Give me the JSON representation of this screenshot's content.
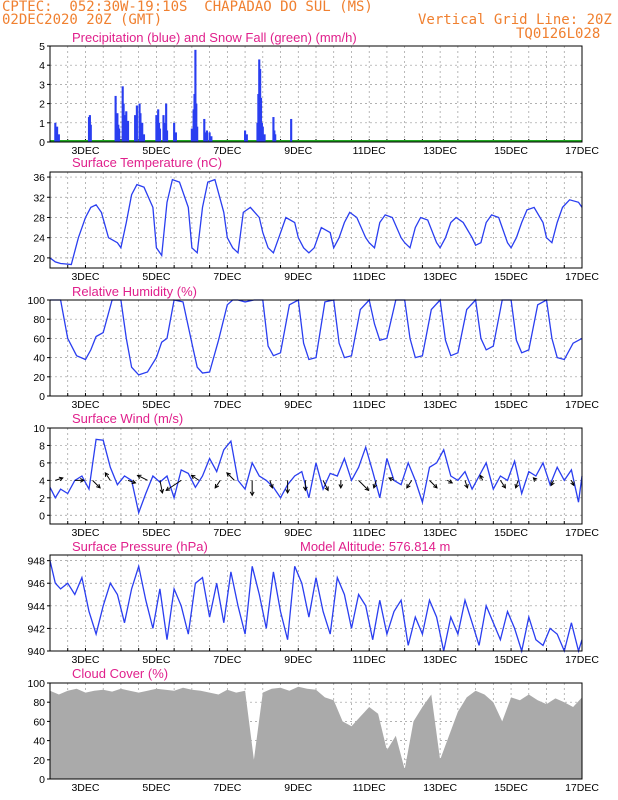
{
  "header": {
    "line1": "CPTEC:  052:30W-19:10S  CHAPADAO DO SUL (MS)",
    "line2": "02DEC2020 20Z (GMT)",
    "grid_note": "Vertical Grid Line: 20Z",
    "run_id": "TQ0126L028",
    "colors": {
      "header": "#f08030",
      "title": "#e0208c",
      "line": "#2a3ef0",
      "bar": "#2a3ef0",
      "snow": "#22aa22",
      "cloud": "#aaaaaa"
    }
  },
  "x_labels": [
    "3DEC",
    "5DEC",
    "7DEC",
    "9DEC",
    "11DEC",
    "13DEC",
    "15DEC",
    "17DEC"
  ],
  "extra_labels": {
    "altitude": "Model Altitude: 576.814 m"
  },
  "chart_data": [
    {
      "type": "bar",
      "title": "Precipitation (blue) and Snow Fall (green) (mm/h)",
      "ylim": [
        0,
        5
      ],
      "yticks": [
        "0",
        "1",
        "2",
        "3",
        "4",
        "5"
      ],
      "x": [
        0.3,
        0.4,
        0.5,
        2.2,
        2.25,
        2.3,
        3.7,
        3.8,
        3.85,
        3.9,
        4.1,
        4.15,
        4.2,
        4.3,
        4.35,
        4.4,
        4.8,
        4.85,
        4.9,
        5.05,
        5.1,
        5.2,
        5.3,
        6.0,
        6.1,
        6.15,
        6.2,
        6.4,
        6.5,
        6.55,
        6.6,
        7.0,
        7.1,
        8.0,
        8.05,
        8.1,
        8.15,
        8.2,
        8.25,
        8.3,
        8.7,
        8.75,
        8.8,
        8.85,
        9.0,
        9.1,
        11.0,
        11.05,
        11.1,
        11.7,
        11.75,
        11.8,
        11.85,
        11.9,
        11.95,
        12.0,
        12.1,
        12.6,
        12.65,
        12.7,
        13.6
      ],
      "values": [
        1.0,
        0.8,
        0.4,
        1.3,
        1.4,
        0.9,
        2.4,
        1.5,
        0.9,
        0.7,
        2.9,
        2.0,
        1.4,
        1.6,
        0.6,
        1.1,
        1.4,
        1.0,
        1.9,
        2.0,
        1.5,
        1.0,
        0.4,
        1.4,
        1.7,
        1.0,
        0.7,
        1.4,
        1.0,
        2.0,
        0.6,
        1.0,
        0.5,
        0.7,
        0.6,
        1.7,
        2.5,
        4.8,
        2.0,
        0.8,
        1.2,
        0.5,
        0.3,
        0.6,
        0.5,
        0.3,
        0.6,
        0.3,
        0.4,
        1.0,
        2.5,
        4.3,
        3.8,
        2.3,
        1.0,
        0.8,
        0.4,
        1.3,
        0.6,
        0.4,
        1.2
      ],
      "snow": 0
    },
    {
      "type": "line",
      "title": "Surface Temperature (nC)",
      "ylim": [
        18,
        37
      ],
      "yticks": [
        "20",
        "24",
        "28",
        "32",
        "36"
      ],
      "x": [
        0,
        0.3,
        0.6,
        0.9,
        1.2,
        1.6,
        2.0,
        2.3,
        2.6,
        2.9,
        3.3,
        3.8,
        4.0,
        4.3,
        4.6,
        4.9,
        5.3,
        5.8,
        6.0,
        6.3,
        6.6,
        6.9,
        7.3,
        7.8,
        8.0,
        8.3,
        8.6,
        8.9,
        9.3,
        9.8,
        10.0,
        10.3,
        10.6,
        10.9,
        11.3,
        11.8,
        12.0,
        12.3,
        12.6,
        12.9,
        13.3,
        13.8,
        14.0,
        14.3,
        14.6,
        14.9,
        15.3,
        15.8,
        16.0,
        16.3,
        16.6,
        16.9,
        17.3,
        17.8,
        18.0,
        18.3,
        18.6,
        18.9,
        19.3,
        19.8,
        20.0,
        20.3,
        20.6,
        20.9,
        21.3,
        21.8,
        22.0,
        22.3,
        22.6,
        22.9,
        23.3,
        23.8,
        24.0,
        24.3,
        24.6,
        24.9,
        25.3,
        25.8,
        26.0,
        26.3,
        26.6,
        26.9,
        27.3,
        27.8,
        28.0,
        28.3,
        28.6,
        28.9,
        29.3,
        29.8,
        30.0
      ],
      "values": [
        20.0,
        19.2,
        18.9,
        18.8,
        18.7,
        24.0,
        28.0,
        30.0,
        30.5,
        29.0,
        24.0,
        23.0,
        22.0,
        27.0,
        32.5,
        34.5,
        34.0,
        30.0,
        22.0,
        20.5,
        31.0,
        35.5,
        35.0,
        30.0,
        22.0,
        21.0,
        30.0,
        35.0,
        35.5,
        29.0,
        24.0,
        22.0,
        21.0,
        29.0,
        30.0,
        28.0,
        25.0,
        22.0,
        21.0,
        24.0,
        28.0,
        27.0,
        24.0,
        22.0,
        21.0,
        22.0,
        26.0,
        25.0,
        22.0,
        24.0,
        27.0,
        29.0,
        28.0,
        24.0,
        23.0,
        22.0,
        27.0,
        28.5,
        28.0,
        24.0,
        23.0,
        22.0,
        26.0,
        28.0,
        27.5,
        23.0,
        22.0,
        24.0,
        27.0,
        28.0,
        27.0,
        24.0,
        22.5,
        23.0,
        27.0,
        28.5,
        28.0,
        23.0,
        22.0,
        24.0,
        27.0,
        29.5,
        30.0,
        27.0,
        24.0,
        23.0,
        27.0,
        30.0,
        31.5,
        31.0,
        30.0
      ]
    },
    {
      "type": "line",
      "title": "Relative Humidity (%)",
      "ylim": [
        0,
        100
      ],
      "yticks": [
        "0",
        "20",
        "40",
        "60",
        "80",
        "100"
      ],
      "x": [
        0,
        0.3,
        0.6,
        1.0,
        1.5,
        2.0,
        2.3,
        2.6,
        3.0,
        3.5,
        4.0,
        4.3,
        4.6,
        5.0,
        5.5,
        6.0,
        6.3,
        6.6,
        7.0,
        7.5,
        8.0,
        8.3,
        8.6,
        9.0,
        9.5,
        10.0,
        10.3,
        10.6,
        11.0,
        11.5,
        12.0,
        12.3,
        12.6,
        13.0,
        13.5,
        14.0,
        14.3,
        14.6,
        15.0,
        15.5,
        16.0,
        16.3,
        16.6,
        17.0,
        17.5,
        18.0,
        18.3,
        18.6,
        19.0,
        19.5,
        20.0,
        20.3,
        20.6,
        21.0,
        21.5,
        22.0,
        22.3,
        22.6,
        23.0,
        23.5,
        24.0,
        24.3,
        24.6,
        25.0,
        25.5,
        26.0,
        26.3,
        26.6,
        27.0,
        27.5,
        28.0,
        28.3,
        28.6,
        29.0,
        29.5,
        30.0
      ],
      "values": [
        100,
        100,
        100,
        60,
        42,
        38,
        48,
        62,
        66,
        100,
        100,
        60,
        30,
        22,
        25,
        40,
        56,
        60,
        100,
        98,
        55,
        30,
        24,
        25,
        58,
        95,
        100,
        100,
        98,
        100,
        100,
        52,
        42,
        45,
        95,
        100,
        55,
        38,
        40,
        98,
        100,
        55,
        40,
        42,
        90,
        100,
        75,
        58,
        60,
        100,
        100,
        60,
        40,
        42,
        90,
        100,
        58,
        42,
        45,
        90,
        100,
        60,
        48,
        52,
        100,
        100,
        58,
        45,
        48,
        95,
        100,
        60,
        40,
        38,
        55,
        60
      ]
    },
    {
      "type": "line",
      "title": "Surface Wind (m/s)",
      "ylim": [
        -1,
        10
      ],
      "yticks": [
        "0",
        "2",
        "4",
        "6",
        "8",
        "10"
      ],
      "x": [
        0,
        0.3,
        0.6,
        1.0,
        1.4,
        1.8,
        2.2,
        2.6,
        3.0,
        3.4,
        3.8,
        4.2,
        4.6,
        5.0,
        5.4,
        5.8,
        6.2,
        6.6,
        7.0,
        7.4,
        7.8,
        8.2,
        8.6,
        9.0,
        9.4,
        9.8,
        10.2,
        10.6,
        11.0,
        11.4,
        11.8,
        12.2,
        12.6,
        13.0,
        13.4,
        13.8,
        14.2,
        14.6,
        15.0,
        15.4,
        15.8,
        16.2,
        16.6,
        17.0,
        17.4,
        17.8,
        18.2,
        18.6,
        19.0,
        19.4,
        19.8,
        20.2,
        20.6,
        21.0,
        21.4,
        21.8,
        22.2,
        22.6,
        23.0,
        23.4,
        23.8,
        24.2,
        24.6,
        25.0,
        25.4,
        25.8,
        26.2,
        26.6,
        27.0,
        27.4,
        27.8,
        28.2,
        28.6,
        29.0,
        29.4,
        29.8,
        30.0
      ],
      "values": [
        3.2,
        2.0,
        3.0,
        2.5,
        4.0,
        4.5,
        3.0,
        8.7,
        8.6,
        5.5,
        3.5,
        4.5,
        4.0,
        0.3,
        2.5,
        4.5,
        3.8,
        4.5,
        2.0,
        5.2,
        4.8,
        3.2,
        4.5,
        6.5,
        5.0,
        7.5,
        8.5,
        4.0,
        3.0,
        6.0,
        4.5,
        4.0,
        3.2,
        2.0,
        3.5,
        4.5,
        5.0,
        2.0,
        6.0,
        3.0,
        4.8,
        4.5,
        6.5,
        4.0,
        5.5,
        7.8,
        5.0,
        2.0,
        6.5,
        4.0,
        3.5,
        6.0,
        4.0,
        1.5,
        5.5,
        6.0,
        7.5,
        4.5,
        4.0,
        5.0,
        3.0,
        4.5,
        6.0,
        3.0,
        4.5,
        4.0,
        6.2,
        2.5,
        5.0,
        4.5,
        6.0,
        3.5,
        5.5,
        4.0,
        5.2,
        1.5,
        4.5
      ],
      "arrows": {
        "x": [
          0.3,
          1.4,
          2.4,
          3.4,
          4.4,
          5.5,
          6.2,
          7.4,
          8.4,
          9.6,
          10.4,
          11.4,
          12.4,
          13.4,
          14.4,
          15.4,
          16.4,
          17.4,
          18.4,
          19.4,
          20.4,
          21.4,
          22.4,
          23.4,
          24.4,
          25.4,
          26.4,
          27.4,
          28.4,
          29.4
        ],
        "u": [
          1.5,
          1.8,
          1.5,
          -1.0,
          1.5,
          -2.0,
          0.5,
          -3.0,
          -1.5,
          -1.0,
          -1.5,
          0.0,
          0.5,
          0.0,
          0.0,
          1.0,
          0.0,
          2.0,
          -0.5,
          -1.0,
          -1.0,
          1.5,
          1.0,
          0.5,
          -0.5,
          1.0,
          -0.5,
          -0.5,
          -0.5,
          0.5
        ],
        "v": [
          0.5,
          0.0,
          -1.5,
          1.5,
          -0.5,
          1.0,
          -2.5,
          -2.0,
          1.0,
          -1.5,
          1.5,
          -3.0,
          -1.5,
          -2.5,
          -2.0,
          -2.0,
          -1.5,
          -2.0,
          -1.5,
          0.5,
          -1.5,
          -1.5,
          -0.5,
          -1.5,
          1.0,
          -1.5,
          -1.5,
          0.5,
          -1.0,
          -1.0
        ]
      }
    },
    {
      "type": "line",
      "title": "Surface Pressure (hPa)",
      "ylim": [
        940,
        948.5
      ],
      "yticks": [
        "940",
        "942",
        "944",
        "946",
        "948"
      ],
      "x": [
        0,
        0.3,
        0.6,
        1.0,
        1.4,
        1.8,
        2.2,
        2.6,
        3.0,
        3.4,
        3.8,
        4.2,
        4.6,
        5.0,
        5.4,
        5.8,
        6.2,
        6.6,
        7.0,
        7.4,
        7.8,
        8.2,
        8.6,
        9.0,
        9.4,
        9.8,
        10.2,
        10.6,
        11.0,
        11.4,
        11.8,
        12.2,
        12.6,
        13.0,
        13.4,
        13.8,
        14.2,
        14.6,
        15.0,
        15.4,
        15.8,
        16.2,
        16.6,
        17.0,
        17.4,
        17.8,
        18.2,
        18.6,
        19.0,
        19.4,
        19.8,
        20.2,
        20.6,
        21.0,
        21.4,
        21.8,
        22.2,
        22.6,
        23.0,
        23.4,
        23.8,
        24.2,
        24.6,
        25.0,
        25.4,
        25.8,
        26.2,
        26.6,
        27.0,
        27.4,
        27.8,
        28.2,
        28.6,
        29.0,
        29.4,
        29.8,
        30.0
      ],
      "values": [
        948.0,
        946.0,
        945.5,
        946.0,
        945.0,
        946.5,
        943.5,
        941.5,
        944.0,
        946.0,
        945.0,
        942.5,
        945.5,
        947.5,
        944.5,
        942.0,
        945.5,
        941.0,
        945.5,
        944.0,
        941.5,
        946.0,
        946.5,
        943.0,
        946.0,
        942.5,
        947.0,
        944.0,
        941.5,
        947.5,
        945.0,
        942.0,
        947.0,
        943.5,
        941.0,
        947.5,
        946.0,
        943.0,
        946.5,
        943.5,
        941.5,
        946.5,
        945.0,
        942.0,
        945.0,
        944.0,
        941.0,
        944.5,
        941.5,
        943.5,
        944.5,
        940.5,
        943.0,
        941.5,
        944.5,
        943.0,
        940.0,
        943.0,
        941.5,
        944.5,
        942.5,
        940.5,
        944.0,
        942.5,
        941.0,
        943.5,
        942.0,
        940.0,
        943.0,
        941.0,
        940.5,
        942.0,
        941.5,
        940.0,
        942.5,
        940.0,
        941.0
      ]
    },
    {
      "type": "area",
      "title": "Cloud Cover (%)",
      "ylim": [
        0,
        100
      ],
      "yticks": [
        "0",
        "20",
        "40",
        "60",
        "80",
        "100"
      ],
      "x": [
        0,
        0.5,
        1.0,
        1.5,
        2.0,
        2.5,
        3.0,
        3.5,
        4.0,
        4.5,
        5.0,
        5.5,
        6.0,
        6.5,
        7.0,
        7.5,
        8.0,
        8.5,
        9.0,
        9.5,
        10.0,
        10.5,
        11.0,
        11.5,
        12.0,
        12.5,
        13.0,
        13.5,
        14.0,
        14.5,
        15.0,
        15.5,
        16.0,
        16.5,
        17.0,
        17.5,
        18.0,
        18.5,
        19.0,
        19.5,
        20.0,
        20.5,
        21.0,
        21.5,
        22.0,
        22.5,
        23.0,
        23.5,
        24.0,
        24.5,
        25.0,
        25.5,
        26.0,
        26.5,
        27.0,
        27.5,
        28.0,
        28.5,
        29.0,
        29.5,
        30.0
      ],
      "values": [
        92,
        88,
        92,
        94,
        90,
        92,
        93,
        91,
        94,
        92,
        90,
        92,
        94,
        93,
        92,
        95,
        93,
        92,
        90,
        88,
        93,
        90,
        92,
        20,
        90,
        94,
        95,
        92,
        96,
        94,
        93,
        85,
        82,
        60,
        55,
        65,
        75,
        68,
        30,
        45,
        10,
        60,
        75,
        88,
        20,
        45,
        70,
        85,
        92,
        88,
        80,
        60,
        85,
        82,
        88,
        82,
        78,
        84,
        80,
        75,
        85
      ]
    }
  ]
}
